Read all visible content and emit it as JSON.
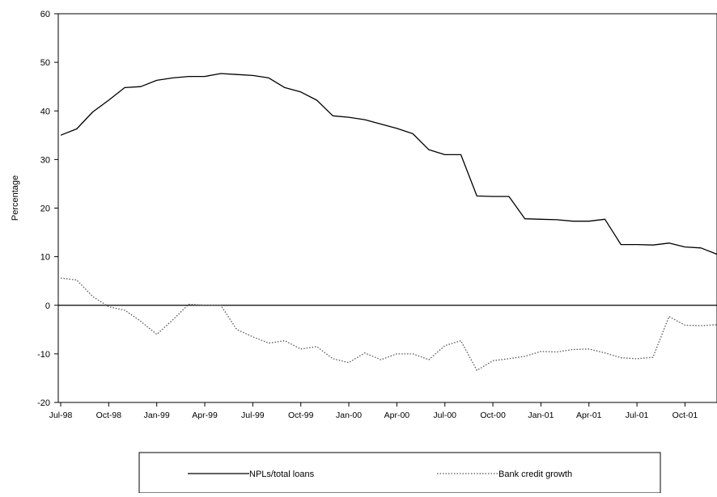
{
  "chart_data": {
    "type": "line",
    "title": "",
    "xlabel": "",
    "ylabel": "Percentage",
    "ylim": [
      -20,
      60
    ],
    "yticks": [
      -20,
      -10,
      0,
      10,
      20,
      30,
      40,
      50,
      60
    ],
    "grid": false,
    "legend_position": "bottom",
    "x_tick_labels": [
      "Jul-98",
      "Oct-98",
      "Jan-99",
      "Apr-99",
      "Jul-99",
      "Oct-99",
      "Jan-00",
      "Apr-00",
      "Jul-00",
      "Oct-00",
      "Jan-01",
      "Apr-01",
      "Jul-01",
      "Oct-01"
    ],
    "x": [
      "Jul-98",
      "Aug-98",
      "Sep-98",
      "Oct-98",
      "Nov-98",
      "Dec-98",
      "Jan-99",
      "Feb-99",
      "Mar-99",
      "Apr-99",
      "May-99",
      "Jun-99",
      "Jul-99",
      "Aug-99",
      "Sep-99",
      "Oct-99",
      "Nov-99",
      "Dec-99",
      "Jan-00",
      "Feb-00",
      "Mar-00",
      "Apr-00",
      "May-00",
      "Jun-00",
      "Jul-00",
      "Aug-00",
      "Sep-00",
      "Oct-00",
      "Nov-00",
      "Dec-00",
      "Jan-01",
      "Feb-01",
      "Mar-01",
      "Apr-01",
      "May-01",
      "Jun-01",
      "Jul-01",
      "Aug-01",
      "Sep-01",
      "Oct-01",
      "Nov-01",
      "Dec-01"
    ],
    "series": [
      {
        "name": "NPLs/total loans",
        "style": "solid",
        "color": "#000000",
        "values": [
          35.0,
          36.3,
          39.8,
          42.2,
          44.8,
          45.0,
          46.3,
          46.8,
          47.1,
          47.1,
          47.7,
          47.5,
          47.3,
          46.8,
          44.8,
          43.9,
          42.2,
          39.0,
          38.7,
          38.2,
          37.3,
          36.4,
          35.3,
          32.0,
          31.0,
          31.0,
          22.5,
          22.4,
          22.4,
          17.8,
          17.7,
          17.6,
          17.3,
          17.3,
          17.7,
          12.5,
          12.5,
          12.4,
          12.8,
          12.0,
          11.8,
          10.5
        ]
      },
      {
        "name": "Bank credit growth",
        "style": "dotted",
        "color": "#555555",
        "values": [
          5.6,
          5.2,
          1.8,
          -0.3,
          -1.0,
          -3.3,
          -6.0,
          -3.0,
          0.2,
          0.0,
          0.0,
          -5.0,
          -6.5,
          -7.8,
          -7.3,
          -9.0,
          -8.5,
          -11.0,
          -11.8,
          -9.8,
          -11.2,
          -10.0,
          -10.0,
          -11.2,
          -8.3,
          -7.3,
          -13.4,
          -11.4,
          -11.0,
          -10.5,
          -9.5,
          -9.6,
          -9.1,
          -9.0,
          -9.8,
          -10.8,
          -11.0,
          -10.7,
          -2.3,
          -4.1,
          -4.2,
          -4.0
        ]
      }
    ]
  }
}
